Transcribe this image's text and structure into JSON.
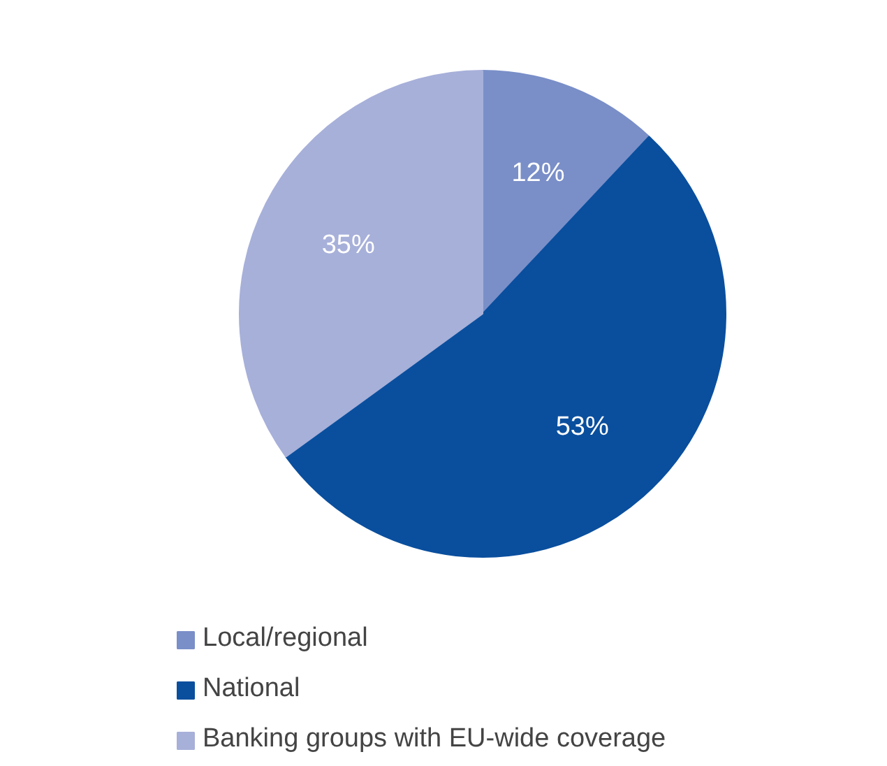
{
  "chart_data": {
    "type": "pie",
    "categories": [
      "Local/regional",
      "National",
      "Banking groups with EU-wide coverage"
    ],
    "values": [
      12,
      53,
      35
    ],
    "colors": [
      "#7a8fc8",
      "#0a4f9e",
      "#a7b0d9"
    ],
    "value_labels": [
      "12%",
      "53%",
      "35%"
    ],
    "legend": "bottom"
  }
}
